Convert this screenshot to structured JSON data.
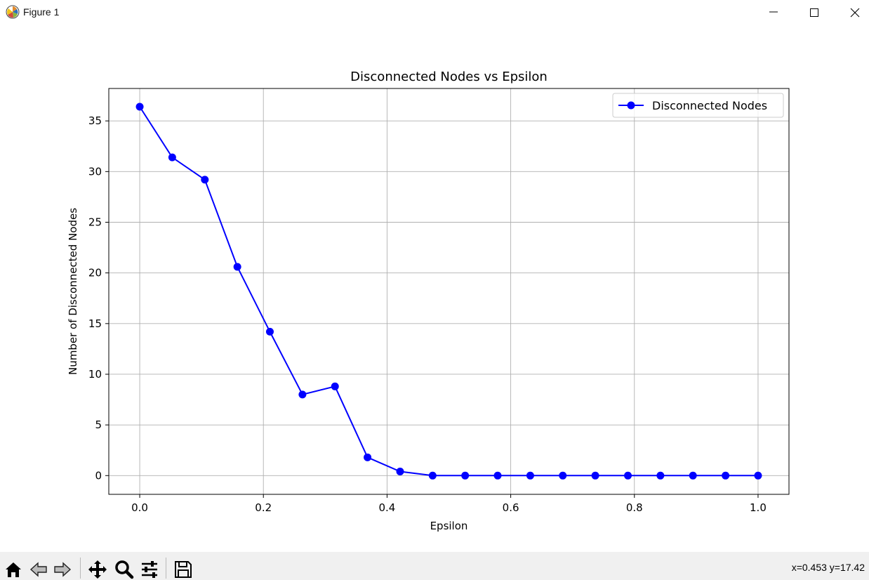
{
  "window": {
    "title": "Figure 1"
  },
  "toolbar": {
    "buttons": [
      "home-icon",
      "back-icon",
      "forward-icon",
      "pan-icon",
      "zoom-icon",
      "configure-subplots-icon",
      "save-icon"
    ],
    "coords": "x=0.453 y=17.42"
  },
  "chart_data": {
    "type": "line",
    "title": "Disconnected Nodes vs Epsilon",
    "xlabel": "Epsilon",
    "ylabel": "Number of Disconnected Nodes",
    "xlim": [
      -0.05,
      1.05
    ],
    "ylim": [
      -1.85,
      38.2
    ],
    "xticks": [
      0.0,
      0.2,
      0.4,
      0.6,
      0.8,
      1.0
    ],
    "xtick_labels": [
      "0.0",
      "0.2",
      "0.4",
      "0.6",
      "0.8",
      "1.0"
    ],
    "yticks": [
      0,
      5,
      10,
      15,
      20,
      25,
      30,
      35
    ],
    "ytick_labels": [
      "0",
      "5",
      "10",
      "15",
      "20",
      "25",
      "30",
      "35"
    ],
    "grid": true,
    "legend": {
      "position": "top-right",
      "entries": [
        "Disconnected Nodes"
      ]
    },
    "series": [
      {
        "name": "Disconnected Nodes",
        "color": "#0000ff",
        "marker": "circle",
        "x": [
          0.0,
          0.0526,
          0.1053,
          0.1579,
          0.2105,
          0.2632,
          0.3158,
          0.3684,
          0.4211,
          0.4737,
          0.5263,
          0.5789,
          0.6316,
          0.6842,
          0.7368,
          0.7895,
          0.8421,
          0.8947,
          0.9474,
          1.0
        ],
        "y": [
          36.4,
          31.4,
          29.2,
          20.6,
          14.2,
          8.0,
          8.8,
          1.8,
          0.4,
          0,
          0,
          0,
          0,
          0,
          0,
          0,
          0,
          0,
          0,
          0
        ]
      }
    ]
  }
}
